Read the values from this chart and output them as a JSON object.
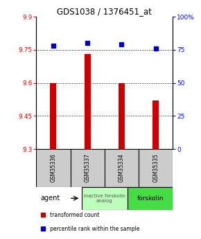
{
  "title": "GDS1038 / 1376451_at",
  "samples": [
    "GSM35336",
    "GSM35337",
    "GSM35334",
    "GSM35335"
  ],
  "red_values": [
    9.6,
    9.73,
    9.6,
    9.52
  ],
  "blue_values": [
    78,
    80,
    79,
    76
  ],
  "ylim_left": [
    9.3,
    9.9
  ],
  "ylim_right": [
    0,
    100
  ],
  "yticks_left": [
    9.3,
    9.45,
    9.6,
    9.75,
    9.9
  ],
  "yticks_right": [
    0,
    25,
    50,
    75,
    100
  ],
  "ytick_labels_left": [
    "9.3",
    "9.45",
    "9.6",
    "9.75",
    "9.9"
  ],
  "ytick_labels_right": [
    "0",
    "25",
    "50",
    "75",
    "100%"
  ],
  "hlines": [
    9.45,
    9.6,
    9.75
  ],
  "bar_color": "#cc0000",
  "dot_color": "#0000cc",
  "group1_label": "inactive forskolin\nanalog",
  "group2_label": "forskolin",
  "group1_color": "#bbffbb",
  "group2_color": "#44dd44",
  "sample_box_color": "#cccccc",
  "agent_label": "agent",
  "legend_red": "transformed count",
  "legend_blue": "percentile rank within the sample",
  "bar_width": 0.18
}
